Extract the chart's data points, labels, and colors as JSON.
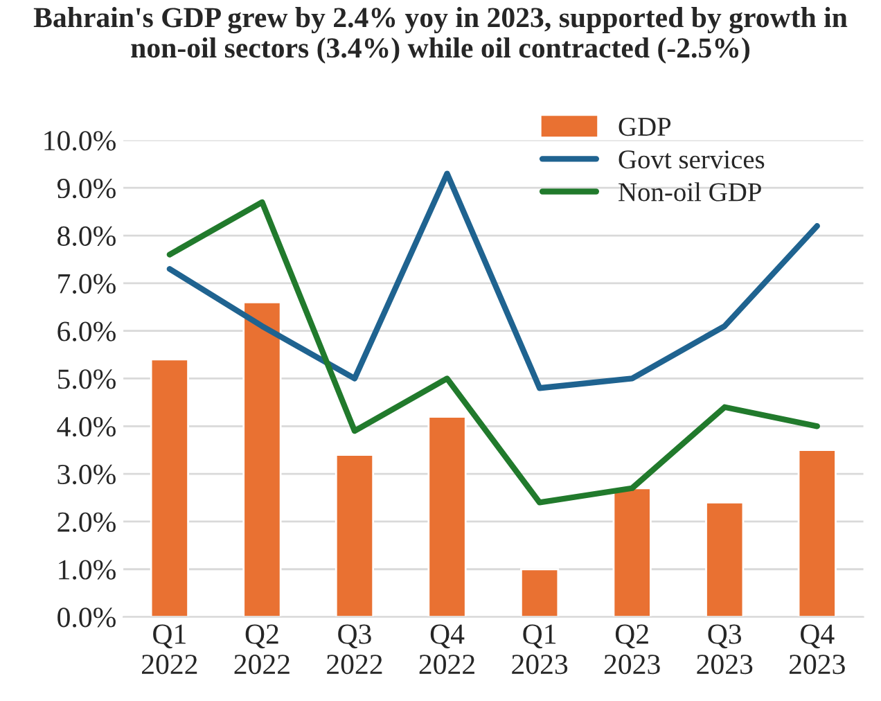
{
  "chart_data": {
    "type": "bar",
    "title": "Bahrain's GDP grew by 2.4% yoy in 2023, supported by growth in non-oil sectors (3.4%) while oil contracted (-2.5%)",
    "categories": [
      "Q1\n2022",
      "Q2\n2022",
      "Q3\n2022",
      "Q4\n2022",
      "Q1\n2023",
      "Q2\n2023",
      "Q3\n2023",
      "Q4\n2023"
    ],
    "series": [
      {
        "name": "GDP",
        "color": "#e97132",
        "values": [
          5.4,
          6.6,
          3.4,
          4.2,
          1.0,
          2.7,
          2.4,
          3.5
        ]
      },
      {
        "name": "Govt services",
        "type": "line",
        "color": "#1f6390",
        "values": [
          7.3,
          6.1,
          5.0,
          9.3,
          4.8,
          5.0,
          6.1,
          8.2
        ]
      },
      {
        "name": "Non-oil GDP",
        "type": "line",
        "color": "#217a2c",
        "values": [
          7.6,
          8.7,
          3.9,
          5.0,
          2.4,
          2.7,
          4.4,
          4.0
        ]
      }
    ],
    "ylim": [
      0,
      10
    ],
    "yticks": [
      {
        "value": 0,
        "label": "0.0%"
      },
      {
        "value": 1,
        "label": "1.0%"
      },
      {
        "value": 2,
        "label": "2.0%"
      },
      {
        "value": 3,
        "label": "3.0%"
      },
      {
        "value": 4,
        "label": "4.0%"
      },
      {
        "value": 5,
        "label": "5.0%"
      },
      {
        "value": 6,
        "label": "6.0%"
      },
      {
        "value": 7,
        "label": "7.0%"
      },
      {
        "value": 8,
        "label": "8.0%"
      },
      {
        "value": 9,
        "label": "9.0%"
      },
      {
        "value": 10,
        "label": "10.0%"
      }
    ],
    "grid": "y",
    "legend": "top right",
    "marker": "none",
    "line_style": "solid"
  }
}
